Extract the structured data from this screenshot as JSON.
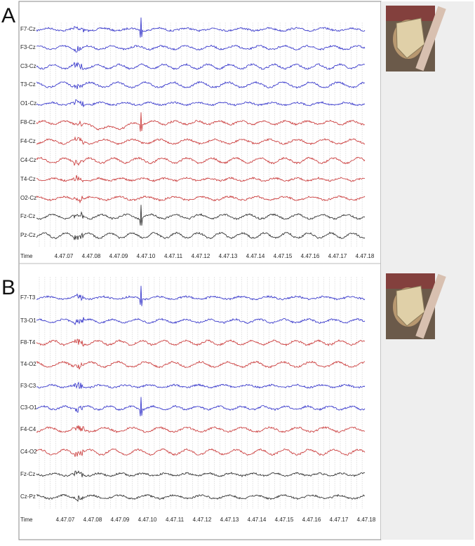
{
  "panels": [
    {
      "label": "A",
      "time_label": "Time",
      "channels": [
        {
          "name": "F7-Cz",
          "color": "#2b2bc8"
        },
        {
          "name": "F3-Cz",
          "color": "#2b2bc8"
        },
        {
          "name": "C3-Cz",
          "color": "#2b2bc8"
        },
        {
          "name": "T3-Cz",
          "color": "#2b2bc8"
        },
        {
          "name": "O1-Cz",
          "color": "#2b2bc8"
        },
        {
          "name": "F8-Cz",
          "color": "#c83030"
        },
        {
          "name": "F4-Cz",
          "color": "#c83030"
        },
        {
          "name": "C4-Cz",
          "color": "#c83030"
        },
        {
          "name": "T4-Cz",
          "color": "#c83030"
        },
        {
          "name": "O2-Cz",
          "color": "#c83030"
        },
        {
          "name": "Fz-Cz",
          "color": "#222222"
        },
        {
          "name": "Pz-Cz",
          "color": "#222222"
        }
      ],
      "times": [
        "4.47.07",
        "4.47.08",
        "4.47.09",
        "4.47.10",
        "4.47.11",
        "4.47.12",
        "4.47.13",
        "4.47.14",
        "4.47.15",
        "4.47.16",
        "4.47.17",
        "4.47.18"
      ]
    },
    {
      "label": "B",
      "time_label": "Time",
      "channels": [
        {
          "name": "F7-T3",
          "color": "#2b2bc8"
        },
        {
          "name": "T3-O1",
          "color": "#2b2bc8"
        },
        {
          "name": "F8-T4",
          "color": "#c83030"
        },
        {
          "name": "T4-O2",
          "color": "#c83030"
        },
        {
          "name": "F3-C3",
          "color": "#2b2bc8"
        },
        {
          "name": "C3-O1",
          "color": "#2b2bc8"
        },
        {
          "name": "F4-C4",
          "color": "#c83030"
        },
        {
          "name": "C4-O2",
          "color": "#c83030"
        },
        {
          "name": "Fz-Cz",
          "color": "#222222"
        },
        {
          "name": "Cz-Pz",
          "color": "#222222"
        }
      ],
      "times": [
        "4.47.07",
        "4.47.08",
        "4.47.09",
        "4.47.10",
        "4.47.11",
        "4.47.12",
        "4.47.13",
        "4.47.14",
        "4.47.15",
        "4.47.16",
        "4.47.17",
        "4.47.18"
      ]
    }
  ]
}
